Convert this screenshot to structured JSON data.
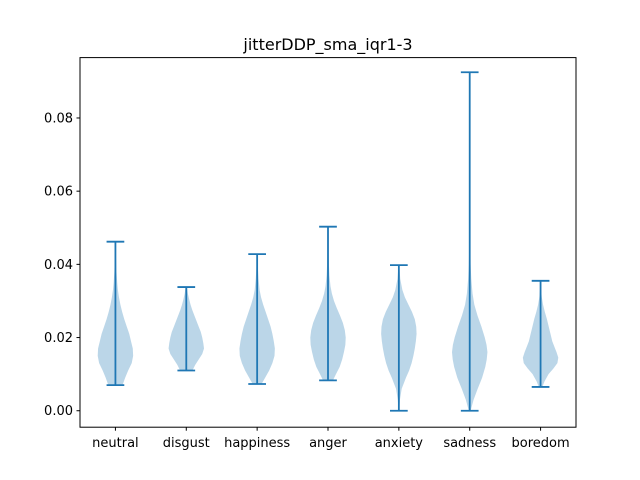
{
  "chart_data": {
    "type": "violin",
    "title": "jitterDDP_sma_iqr1-3",
    "xlabel": "",
    "ylabel": "",
    "categories": [
      "neutral",
      "disgust",
      "happiness",
      "anger",
      "anxiety",
      "sadness",
      "boredom"
    ],
    "ylim": [
      -0.0045,
      0.0965
    ],
    "yticks": [
      0.0,
      0.02,
      0.04,
      0.06,
      0.08
    ],
    "ytick_labels": [
      "0.00",
      "0.02",
      "0.04",
      "0.06",
      "0.08"
    ],
    "grid": false,
    "colors": {
      "body": "#1f77b4",
      "body_opacity": 0.3,
      "lines": "#1f77b4"
    },
    "violins": [
      {
        "name": "neutral",
        "min": 0.007,
        "max": 0.0462,
        "density": [
          [
            0.007,
            0.4
          ],
          [
            0.009,
            0.55
          ],
          [
            0.011,
            0.72
          ],
          [
            0.013,
            0.92
          ],
          [
            0.015,
            1.0
          ],
          [
            0.017,
            0.98
          ],
          [
            0.019,
            0.88
          ],
          [
            0.021,
            0.78
          ],
          [
            0.023,
            0.64
          ],
          [
            0.025,
            0.5
          ],
          [
            0.027,
            0.38
          ],
          [
            0.029,
            0.28
          ],
          [
            0.031,
            0.2
          ],
          [
            0.033,
            0.14
          ],
          [
            0.035,
            0.1
          ],
          [
            0.038,
            0.06
          ],
          [
            0.041,
            0.04
          ],
          [
            0.044,
            0.02
          ],
          [
            0.0462,
            0.01
          ]
        ]
      },
      {
        "name": "disgust",
        "min": 0.011,
        "max": 0.0338,
        "density": [
          [
            0.011,
            0.35
          ],
          [
            0.0125,
            0.5
          ],
          [
            0.014,
            0.7
          ],
          [
            0.0155,
            0.9
          ],
          [
            0.017,
            1.0
          ],
          [
            0.0185,
            0.96
          ],
          [
            0.02,
            0.9
          ],
          [
            0.0215,
            0.82
          ],
          [
            0.023,
            0.7
          ],
          [
            0.0245,
            0.58
          ],
          [
            0.026,
            0.46
          ],
          [
            0.0275,
            0.34
          ],
          [
            0.029,
            0.24
          ],
          [
            0.0305,
            0.16
          ],
          [
            0.032,
            0.09
          ],
          [
            0.0338,
            0.04
          ]
        ]
      },
      {
        "name": "happiness",
        "min": 0.0073,
        "max": 0.0428,
        "density": [
          [
            0.0073,
            0.25
          ],
          [
            0.009,
            0.45
          ],
          [
            0.011,
            0.68
          ],
          [
            0.013,
            0.86
          ],
          [
            0.015,
            0.98
          ],
          [
            0.017,
            1.0
          ],
          [
            0.019,
            0.94
          ],
          [
            0.021,
            0.86
          ],
          [
            0.023,
            0.76
          ],
          [
            0.025,
            0.62
          ],
          [
            0.027,
            0.48
          ],
          [
            0.029,
            0.34
          ],
          [
            0.031,
            0.22
          ],
          [
            0.033,
            0.14
          ],
          [
            0.036,
            0.08
          ],
          [
            0.039,
            0.04
          ],
          [
            0.0428,
            0.01
          ]
        ]
      },
      {
        "name": "anger",
        "min": 0.0083,
        "max": 0.0503,
        "density": [
          [
            0.0083,
            0.28
          ],
          [
            0.01,
            0.45
          ],
          [
            0.012,
            0.66
          ],
          [
            0.014,
            0.8
          ],
          [
            0.016,
            0.9
          ],
          [
            0.018,
            0.98
          ],
          [
            0.02,
            1.0
          ],
          [
            0.022,
            0.95
          ],
          [
            0.024,
            0.84
          ],
          [
            0.026,
            0.68
          ],
          [
            0.028,
            0.5
          ],
          [
            0.03,
            0.34
          ],
          [
            0.032,
            0.22
          ],
          [
            0.034,
            0.14
          ],
          [
            0.037,
            0.08
          ],
          [
            0.041,
            0.04
          ],
          [
            0.045,
            0.02
          ],
          [
            0.0503,
            0.01
          ]
        ]
      },
      {
        "name": "anxiety",
        "min": 0.0,
        "max": 0.0398,
        "density": [
          [
            0.0,
            0.02
          ],
          [
            0.003,
            0.06
          ],
          [
            0.006,
            0.16
          ],
          [
            0.009,
            0.4
          ],
          [
            0.011,
            0.58
          ],
          [
            0.013,
            0.72
          ],
          [
            0.015,
            0.82
          ],
          [
            0.017,
            0.9
          ],
          [
            0.019,
            0.96
          ],
          [
            0.021,
            1.0
          ],
          [
            0.023,
            0.98
          ],
          [
            0.025,
            0.9
          ],
          [
            0.027,
            0.74
          ],
          [
            0.029,
            0.54
          ],
          [
            0.031,
            0.34
          ],
          [
            0.033,
            0.2
          ],
          [
            0.036,
            0.08
          ],
          [
            0.0398,
            0.02
          ]
        ]
      },
      {
        "name": "sadness",
        "min": 0.0,
        "max": 0.0925,
        "density": [
          [
            0.0,
            0.05
          ],
          [
            0.003,
            0.22
          ],
          [
            0.006,
            0.45
          ],
          [
            0.009,
            0.7
          ],
          [
            0.012,
            0.88
          ],
          [
            0.014,
            0.96
          ],
          [
            0.016,
            1.0
          ],
          [
            0.018,
            0.95
          ],
          [
            0.02,
            0.85
          ],
          [
            0.023,
            0.66
          ],
          [
            0.026,
            0.44
          ],
          [
            0.029,
            0.26
          ],
          [
            0.032,
            0.16
          ],
          [
            0.036,
            0.09
          ],
          [
            0.04,
            0.05
          ],
          [
            0.045,
            0.03
          ],
          [
            0.055,
            0.015
          ],
          [
            0.07,
            0.008
          ],
          [
            0.0925,
            0.002
          ]
        ]
      },
      {
        "name": "boredom",
        "min": 0.0065,
        "max": 0.0355,
        "density": [
          [
            0.0065,
            0.1
          ],
          [
            0.008,
            0.22
          ],
          [
            0.01,
            0.45
          ],
          [
            0.0115,
            0.72
          ],
          [
            0.013,
            0.95
          ],
          [
            0.0145,
            1.0
          ],
          [
            0.016,
            0.9
          ],
          [
            0.0175,
            0.78
          ],
          [
            0.019,
            0.66
          ],
          [
            0.021,
            0.56
          ],
          [
            0.023,
            0.46
          ],
          [
            0.025,
            0.36
          ],
          [
            0.027,
            0.24
          ],
          [
            0.029,
            0.14
          ],
          [
            0.031,
            0.07
          ],
          [
            0.033,
            0.03
          ],
          [
            0.0355,
            0.01
          ]
        ]
      }
    ]
  }
}
